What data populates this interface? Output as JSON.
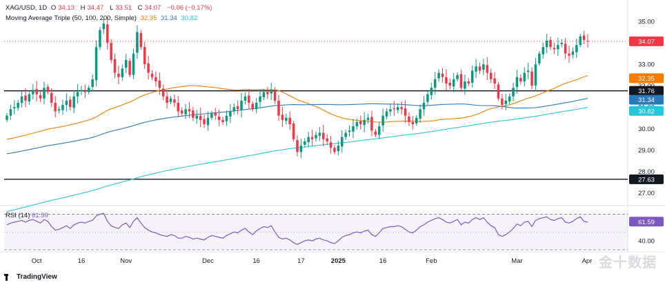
{
  "header": {
    "symbol": "XAG/USD, 1D",
    "open_label": "O",
    "open": "34.13",
    "high_label": "H",
    "high": "34.47",
    "low_label": "L",
    "low": "33.51",
    "close_label": "C",
    "close": "34.07",
    "change": "−0.06 (−0.17%)",
    "ma_label": "Moving Average Triple (50, 100, 200, Simple)",
    "ma_values": [
      "32.35",
      "31.34",
      "30.82"
    ]
  },
  "rsi_legend": {
    "label": "RSI (14)",
    "value": "61.59"
  },
  "branding": {
    "text": "TradingView",
    "watermark": "金十数据"
  },
  "colors": {
    "up": "#089981",
    "down": "#f23645",
    "ma50": "#f57c00",
    "ma100": "#2a7ab9",
    "ma200": "#26c6da",
    "rsi": "#7e57c2",
    "hline": "#131722"
  },
  "chart_data": [
    {
      "type": "candlestick",
      "x_ticks": [
        "Oct",
        "16",
        "Nov",
        "Dec",
        "16",
        "17",
        "2025",
        "16",
        "Feb",
        "Mar",
        "Apr"
      ],
      "y_ticks": [
        27.0,
        28.0,
        29.0,
        30.0,
        31.0,
        32.0,
        33.0,
        35.0
      ],
      "ylim": [
        26.4,
        35.55
      ],
      "price_labels": [
        {
          "value": 34.07,
          "text": "34.07",
          "color": "#f23645"
        },
        {
          "value": 32.35,
          "text": "32.35",
          "color": "#f57c00"
        },
        {
          "value": 31.76,
          "text": "31.76",
          "color": "#131722"
        },
        {
          "value": 31.34,
          "text": "31.34",
          "color": "#2a7ab9"
        },
        {
          "value": 30.82,
          "text": "30.82",
          "color": "#26c6da"
        },
        {
          "value": 27.63,
          "text": "27.63",
          "color": "#131722"
        }
      ],
      "horizontal_lines": [
        31.76,
        27.63
      ],
      "series": [
        {
          "name": "XAG/USD",
          "kind": "candles",
          "closes": [
            30.6,
            30.9,
            31.0,
            31.2,
            31.5,
            31.3,
            31.6,
            31.8,
            31.6,
            31.4,
            31.9,
            31.7,
            31.2,
            30.8,
            30.9,
            31.1,
            31.3,
            31.0,
            31.5,
            31.7,
            31.8,
            31.7,
            31.9,
            32.3,
            33.8,
            34.6,
            34.9,
            34.0,
            33.2,
            32.6,
            32.4,
            32.8,
            33.2,
            32.5,
            33.5,
            34.5,
            33.8,
            33.0,
            32.6,
            32.4,
            32.2,
            31.9,
            31.5,
            31.2,
            31.4,
            31.2,
            30.8,
            30.7,
            30.9,
            30.8,
            30.5,
            30.6,
            30.4,
            30.2,
            30.5,
            30.7,
            30.6,
            30.4,
            30.3,
            30.6,
            30.8,
            31.0,
            30.9,
            31.3,
            31.5,
            31.2,
            30.9,
            31.2,
            31.5,
            31.7,
            31.6,
            31.8,
            31.3,
            30.6,
            30.4,
            30.5,
            30.2,
            29.5,
            28.9,
            29.2,
            29.4,
            29.6,
            29.5,
            29.7,
            29.8,
            29.5,
            29.4,
            29.1,
            28.9,
            29.2,
            29.6,
            29.8,
            29.9,
            30.1,
            30.3,
            30.2,
            30.4,
            30.5,
            29.9,
            29.7,
            30.1,
            30.6,
            30.8,
            30.9,
            30.9,
            31.0,
            30.9,
            30.6,
            30.3,
            30.2,
            30.5,
            30.9,
            31.2,
            31.6,
            31.9,
            32.3,
            32.6,
            32.4,
            32.1,
            32.0,
            32.3,
            32.5,
            31.9,
            32.2,
            32.1,
            32.7,
            32.9,
            32.7,
            33.0,
            32.6,
            32.3,
            32.1,
            31.4,
            31.1,
            31.3,
            31.5,
            31.9,
            32.4,
            32.2,
            32.6,
            32.7,
            32.0,
            33.0,
            33.5,
            33.8,
            34.1,
            33.8,
            33.7,
            33.9,
            34.0,
            33.5,
            33.4,
            33.6,
            33.9,
            34.3,
            34.13,
            34.07
          ]
        },
        {
          "name": "MA 50",
          "kind": "line",
          "color": "#f57c00"
        },
        {
          "name": "MA 100",
          "kind": "line",
          "color": "#2a7ab9"
        },
        {
          "name": "MA 200",
          "kind": "line",
          "color": "#26c6da"
        }
      ]
    },
    {
      "type": "line",
      "name": "RSI (14)",
      "ylim": [
        30,
        75
      ],
      "y_ticks": [
        40.0
      ],
      "last_value": 61.59,
      "levels": [
        70,
        50,
        30
      ],
      "values": [
        58,
        60,
        61,
        62,
        63,
        61,
        63,
        64,
        62,
        60,
        64,
        62,
        56,
        52,
        53,
        55,
        57,
        54,
        58,
        60,
        61,
        60,
        62,
        63,
        68,
        70,
        71,
        62,
        57,
        55,
        54,
        58,
        60,
        55,
        62,
        66,
        60,
        55,
        52,
        50,
        49,
        47,
        46,
        45,
        47,
        46,
        43,
        43,
        45,
        44,
        42,
        43,
        42,
        41,
        44,
        46,
        45,
        44,
        43,
        46,
        48,
        50,
        49,
        52,
        54,
        50,
        47,
        51,
        54,
        56,
        55,
        57,
        50,
        44,
        42,
        43,
        41,
        38,
        36,
        38,
        40,
        41,
        40,
        42,
        43,
        41,
        40,
        38,
        37,
        40,
        44,
        46,
        47,
        49,
        50,
        49,
        51,
        52,
        47,
        45,
        49,
        54,
        55,
        56,
        56,
        57,
        56,
        53,
        50,
        49,
        52,
        56,
        58,
        61,
        63,
        65,
        66,
        64,
        61,
        60,
        62,
        64,
        58,
        61,
        60,
        64,
        66,
        64,
        66,
        61,
        57,
        55,
        47,
        45,
        47,
        50,
        54,
        59,
        57,
        61,
        62,
        56,
        63,
        65,
        66,
        67,
        64,
        63,
        65,
        66,
        61,
        60,
        62,
        65,
        67,
        62,
        61
      ]
    }
  ]
}
